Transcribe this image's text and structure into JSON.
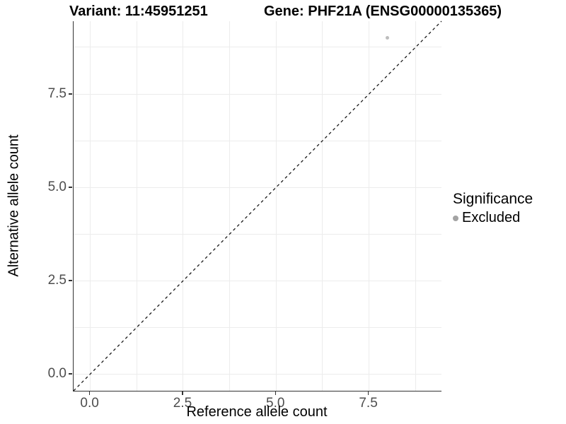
{
  "titles": {
    "left": "Variant: 11:45951251",
    "right": "Gene: PHF21A (ENSG00000135365)"
  },
  "chart_data": {
    "type": "scatter",
    "title": "Variant: 11:45951251 — Gene: PHF21A (ENSG00000135365)",
    "xlabel": "Reference allele count",
    "ylabel": "Alternative allele count",
    "xlim": [
      -0.45,
      9.45
    ],
    "ylim": [
      -0.45,
      9.45
    ],
    "xticks": {
      "values": [
        0,
        2.5,
        5,
        7.5
      ],
      "labels": [
        "0.0",
        "2.5",
        "5.0",
        "7.5"
      ]
    },
    "yticks": {
      "values": [
        0,
        2.5,
        5,
        7.5
      ],
      "labels": [
        "0.0",
        "2.5",
        "5.0",
        "7.5"
      ]
    },
    "minor_xticks": [
      1.25,
      3.75,
      6.25,
      8.75
    ],
    "minor_yticks": [
      1.25,
      3.75,
      6.25,
      8.75
    ],
    "grid": true,
    "series": [
      {
        "name": "Excluded",
        "color": "#bdbdbd",
        "points": [
          {
            "x": 8,
            "y": 9
          }
        ]
      }
    ],
    "reference_line": {
      "type": "identity",
      "slope": 1,
      "intercept": 0,
      "style": "dashed",
      "color": "#1a1a1a"
    },
    "legend": {
      "title": "Significance",
      "position": "right",
      "items": [
        {
          "label": "Excluded",
          "color": "#a3a3a3"
        }
      ]
    }
  },
  "colors": {
    "grid": "#ececec",
    "axis_line": "#333333",
    "tick_label": "#4d4d4d",
    "point": "#bdbdbd"
  }
}
